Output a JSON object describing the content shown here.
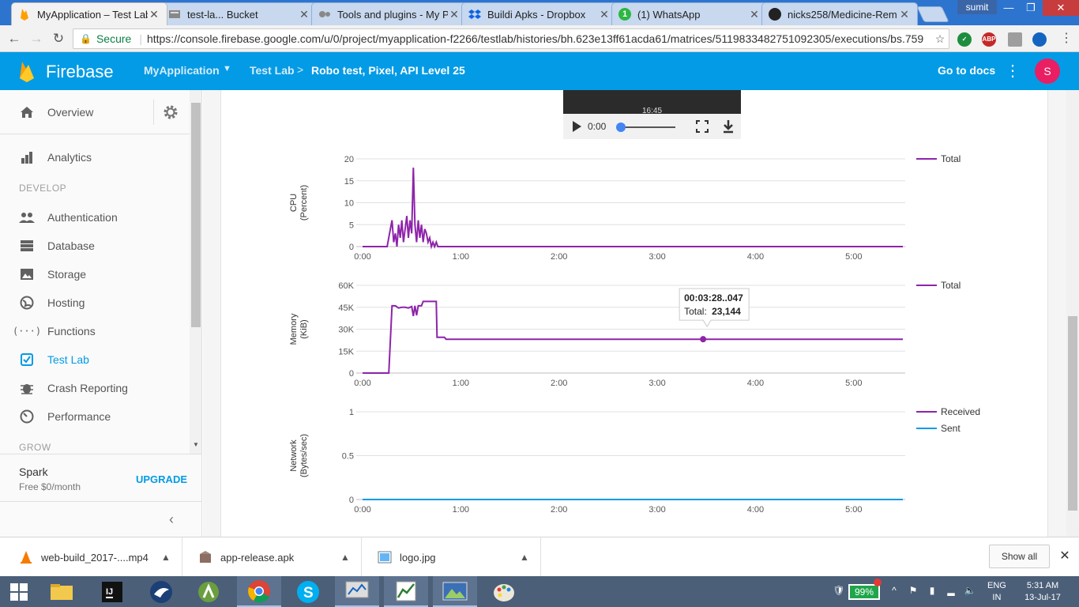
{
  "browser": {
    "tabs": [
      {
        "title": "MyApplication – Test Lab",
        "icon": "firebase-icon",
        "active": true
      },
      {
        "title": "test-la... Bucket",
        "icon": "bucket-icon",
        "active": false
      },
      {
        "title": "Tools and plugins - My P",
        "icon": "gears-icon",
        "active": false
      },
      {
        "title": "Buildi Apks - Dropbox",
        "icon": "dropbox-icon",
        "active": false
      },
      {
        "title": "(1) WhatsApp",
        "icon": "whatsapp-icon",
        "active": false
      },
      {
        "title": "nicks258/Medicine-Rem",
        "icon": "github-icon",
        "active": false
      }
    ],
    "user": "sumit",
    "secure_label": "Secure",
    "url": "https://console.firebase.google.com/u/0/project/myapplication-f2266/testlab/histories/bh.623e13ff61acda61/matrices/5119833482751092305/executions/bs.759",
    "extensions": [
      "shield-extension-icon",
      "abp-extension-icon",
      "page-extension-icon",
      "globe-extension-icon"
    ]
  },
  "header": {
    "brand": "Firebase",
    "project": "MyApplication",
    "breadcrumb_parent": "Test Lab",
    "breadcrumb_separator": ">",
    "breadcrumb_current": "Robo test, Pixel, API Level 25",
    "docs_link": "Go to docs",
    "avatar_letter": "S",
    "colors": {
      "bar": "#039be5",
      "avatar": "#e91e63"
    }
  },
  "sidebar": {
    "overview": "Overview",
    "analytics": "Analytics",
    "develop_header": "DEVELOP",
    "develop_items": [
      {
        "label": "Authentication",
        "icon": "people-icon"
      },
      {
        "label": "Database",
        "icon": "database-icon"
      },
      {
        "label": "Storage",
        "icon": "storage-icon"
      },
      {
        "label": "Hosting",
        "icon": "globe-icon"
      },
      {
        "label": "Functions",
        "icon": "functions-icon"
      },
      {
        "label": "Test Lab",
        "icon": "testlab-icon",
        "active": true
      },
      {
        "label": "Crash Reporting",
        "icon": "bug-icon"
      },
      {
        "label": "Performance",
        "icon": "speedometer-icon"
      }
    ],
    "grow_header": "GROW",
    "plan_name": "Spark",
    "plan_price": "Free $0/month",
    "upgrade": "UPGRADE"
  },
  "video": {
    "timestamp_overlay": "16:45",
    "current_time": "0:00"
  },
  "charts": {
    "x_ticks": [
      "0:00",
      "1:00",
      "2:00",
      "3:00",
      "4:00",
      "5:00"
    ],
    "tooltip": {
      "time": "00:03:28..047",
      "label": "Total:",
      "value": "23,144"
    }
  },
  "chart_data": [
    {
      "type": "line",
      "ylabel": "CPU\n(Percent)",
      "ylabel_lines": [
        "CPU",
        "(Percent)"
      ],
      "xlim": [
        0,
        330
      ],
      "ylim": [
        0,
        20
      ],
      "y_ticks": [
        "0",
        "5",
        "10",
        "15",
        "20"
      ],
      "grid": true,
      "legend_position": "right",
      "series": [
        {
          "name": "Total",
          "color": "#8e24aa",
          "x": [
            0,
            15,
            17,
            18,
            19,
            20,
            21,
            22,
            23,
            24,
            25,
            26,
            27,
            28,
            29,
            30,
            31,
            32,
            33,
            34,
            35,
            36,
            37,
            38,
            39,
            40,
            41,
            42,
            43,
            44,
            45,
            46,
            47,
            48,
            49,
            50,
            51,
            52,
            53,
            54,
            55,
            330
          ],
          "y": [
            0,
            0,
            4,
            6,
            1,
            3,
            0,
            5,
            2,
            6,
            1,
            4,
            7,
            2,
            6,
            3,
            18,
            5,
            1,
            6,
            2,
            5,
            1,
            4,
            3,
            1,
            2,
            0,
            1,
            0,
            1,
            0,
            0,
            0,
            0,
            0,
            0,
            0,
            0,
            0,
            0,
            0
          ]
        }
      ]
    },
    {
      "type": "line",
      "ylabel": "Memory\n(KiB)",
      "ylabel_lines": [
        "Memory",
        "(KiB)"
      ],
      "xlim": [
        0,
        330
      ],
      "ylim": [
        0,
        60000
      ],
      "y_ticks": [
        "0",
        "15K",
        "30K",
        "45K",
        "60K"
      ],
      "grid": true,
      "legend_position": "right",
      "series": [
        {
          "name": "Total",
          "color": "#8e24aa",
          "x": [
            0,
            16,
            18,
            20,
            22,
            24,
            26,
            28,
            30,
            31,
            32,
            33,
            34,
            35,
            36,
            37,
            39,
            41,
            42,
            45,
            45.5,
            50,
            51,
            52,
            330
          ],
          "y": [
            0,
            0,
            46000,
            46000,
            44500,
            45000,
            45000,
            44500,
            45500,
            39000,
            46000,
            39500,
            46000,
            46000,
            46000,
            49000,
            49000,
            49000,
            49000,
            49000,
            24500,
            24500,
            23144,
            23144,
            23144
          ]
        },
        {
          "name": "hover-point",
          "x": [
            208
          ],
          "y": [
            23144
          ]
        }
      ]
    },
    {
      "type": "line",
      "ylabel": "Network\n(Bytes/sec)",
      "ylabel_lines": [
        "Network",
        "(Bytes/sec)"
      ],
      "xlim": [
        0,
        330
      ],
      "ylim": [
        0,
        1
      ],
      "y_ticks": [
        "0",
        "0.5",
        "1"
      ],
      "grid": true,
      "legend_position": "right",
      "series": [
        {
          "name": "Received",
          "color": "#8e24aa",
          "x": [
            0,
            330
          ],
          "y": [
            0,
            0
          ]
        },
        {
          "name": "Sent",
          "color": "#039be5",
          "x": [
            0,
            330
          ],
          "y": [
            0,
            0
          ]
        }
      ]
    }
  ],
  "downloads": [
    {
      "name": "web-build_2017-....mp4",
      "icon": "vlc-cone-icon"
    },
    {
      "name": "app-release.apk",
      "icon": "apk-package-icon"
    },
    {
      "name": "logo.jpg",
      "icon": "image-file-icon"
    }
  ],
  "downloads_show_all": "Show all",
  "taskbar": {
    "apps": [
      "file-explorer-icon",
      "intellij-icon",
      "eagle-app-icon",
      "android-studio-icon",
      "chrome-icon",
      "skype-icon",
      "monitor-app-icon",
      "chart-app-icon",
      "photos-app-icon",
      "paint-icon"
    ],
    "battery": "99%",
    "lang_1": "ENG",
    "lang_2": "IN",
    "time": "5:31 AM",
    "date": "13-Jul-17"
  }
}
